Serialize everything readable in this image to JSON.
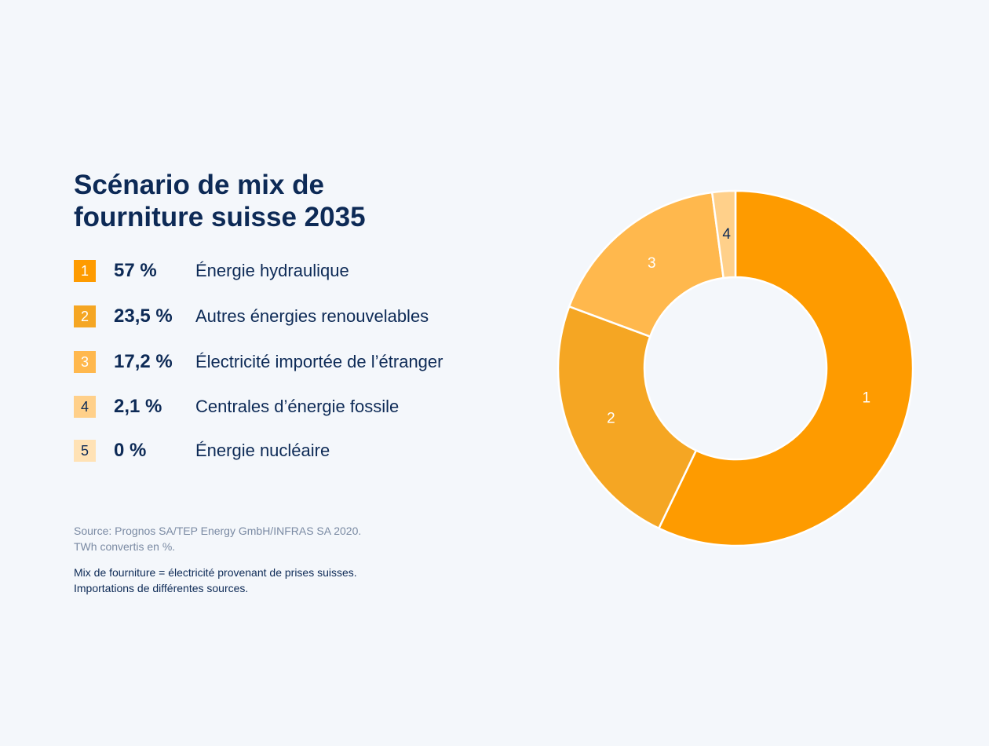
{
  "title_line1": "Scénario de mix de",
  "title_line2": "fourniture suisse 2035",
  "legend": [
    {
      "number": "1",
      "percent": "57 %",
      "label": "Énergie hydraulique",
      "color": "#fe9b00"
    },
    {
      "number": "2",
      "percent": "23,5 %",
      "label": "Autres énergies renouvelables",
      "color": "#f5a623"
    },
    {
      "number": "3",
      "percent": "17,2 %",
      "label": "Électricité importée de l’étranger",
      "color": "#ffb84d"
    },
    {
      "number": "4",
      "percent": "2,1 %",
      "label": "Centrales d’énergie fossile",
      "color": "#ffd08a"
    },
    {
      "number": "5",
      "percent": "0 %",
      "label": "Énergie nucléaire",
      "color": "#ffe2b5"
    }
  ],
  "source_line1": "Source: Prognos SA/TEP Energy GmbH/INFRAS SA 2020.",
  "source_line2": "TWh convertis en %.",
  "note_line1": "Mix de fourniture = électricité provenant de prises suisses.",
  "note_line2": "Importations de différentes sources.",
  "chart_data": {
    "type": "pie",
    "donut": true,
    "title": "Scénario de mix de fourniture suisse 2035",
    "categories": [
      "Énergie hydraulique",
      "Autres énergies renouvelables",
      "Électricité importée de l’étranger",
      "Centrales d’énergie fossile",
      "Énergie nucléaire"
    ],
    "slice_labels": [
      "1",
      "2",
      "3",
      "4",
      "5"
    ],
    "values": [
      57,
      23.5,
      17.2,
      2.1,
      0
    ],
    "unit": "%",
    "colors": [
      "#fe9b00",
      "#f5a623",
      "#ffb84d",
      "#ffd08a",
      "#ffe2b5"
    ],
    "label_colors": [
      "#ffffff",
      "#ffffff",
      "#ffffff",
      "#0d2a56",
      "#0d2a56"
    ],
    "legend_position": "left"
  }
}
